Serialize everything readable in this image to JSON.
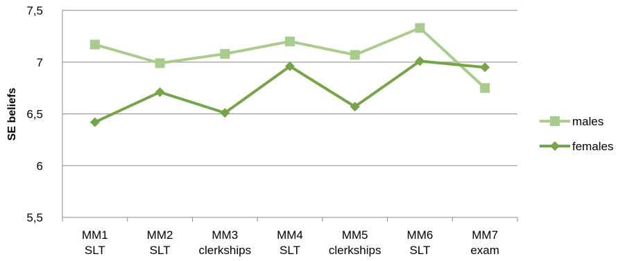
{
  "chart_data": {
    "type": "line",
    "categories": [
      [
        "MM1",
        "SLT"
      ],
      [
        "MM2",
        "SLT"
      ],
      [
        "MM3",
        "clerkships"
      ],
      [
        "MM4",
        "SLT"
      ],
      [
        "MM5",
        "clerkships"
      ],
      [
        "MM6",
        "SLT"
      ],
      [
        "MM7",
        "exam"
      ]
    ],
    "ylabel": "SE beliefs",
    "xlabel": "",
    "title": "",
    "ylim": [
      5.5,
      7.5
    ],
    "yticks": [
      "7,5",
      "7",
      "6,5",
      "6",
      "5,5"
    ],
    "ytick_values": [
      7.5,
      7.0,
      6.5,
      6.0,
      5.5
    ],
    "grid": true,
    "legend_position": "right",
    "series": [
      {
        "name": "males",
        "color": "#a9cc8e",
        "marker": "square",
        "values": [
          7.17,
          6.99,
          7.08,
          7.2,
          7.07,
          7.33,
          6.75
        ]
      },
      {
        "name": "females",
        "color": "#77a349",
        "marker": "diamond",
        "values": [
          6.42,
          6.71,
          6.51,
          6.96,
          6.57,
          7.01,
          6.95
        ]
      }
    ]
  }
}
